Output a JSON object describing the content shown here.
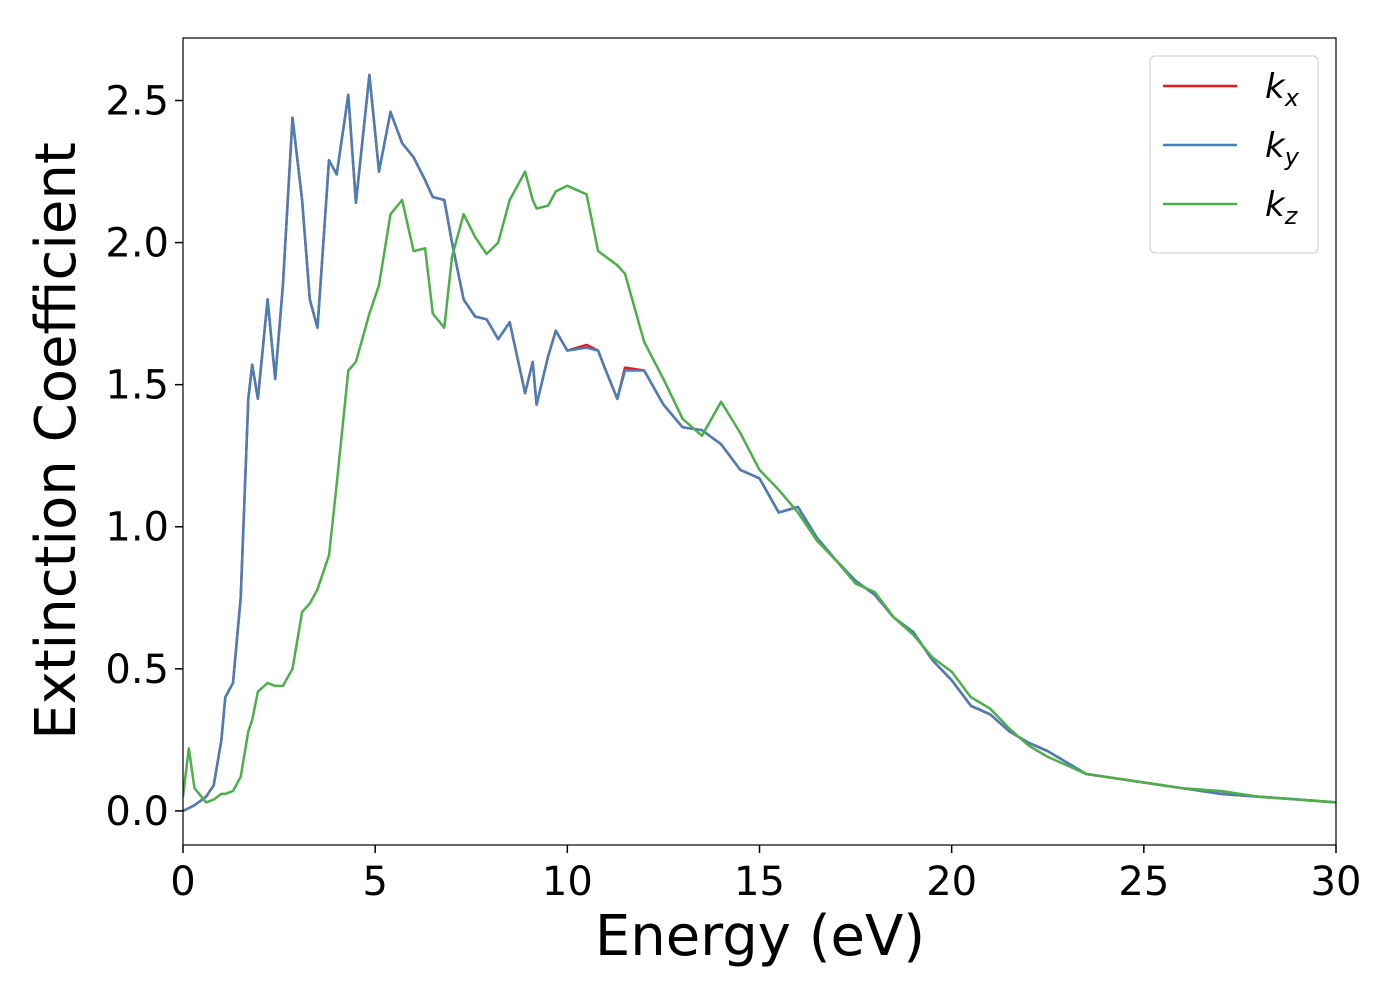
{
  "chart_data": {
    "type": "line",
    "xlabel": "Energy (eV)",
    "ylabel": "Extinction Coefficient",
    "x": [
      0,
      0.15,
      0.3,
      0.6,
      0.8,
      1.0,
      1.1,
      1.3,
      1.5,
      1.7,
      1.8,
      1.95,
      2.2,
      2.4,
      2.6,
      2.85,
      3.1,
      3.3,
      3.5,
      3.8,
      4.0,
      4.3,
      4.5,
      4.85,
      5.1,
      5.4,
      5.7,
      6.0,
      6.3,
      6.5,
      6.8,
      7.0,
      7.3,
      7.6,
      7.9,
      8.2,
      8.5,
      8.9,
      9.1,
      9.2,
      9.5,
      9.7,
      10.0,
      10.5,
      10.8,
      11.0,
      11.3,
      11.5,
      12.0,
      12.5,
      13.0,
      13.5,
      14.0,
      14.5,
      15,
      15.5,
      16,
      16.5,
      17,
      17.5,
      18,
      18.5,
      19,
      19.5,
      20,
      20.5,
      21,
      21.5,
      22,
      22.5,
      23,
      23.5,
      24,
      25,
      26,
      27,
      28,
      29,
      30
    ],
    "series": [
      {
        "name": "kx",
        "color": "#e41a1c",
        "values": [
          0,
          0.01,
          0.02,
          0.05,
          0.09,
          0.25,
          0.4,
          0.45,
          0.75,
          1.45,
          1.57,
          1.45,
          1.8,
          1.52,
          1.85,
          2.44,
          2.15,
          1.8,
          1.7,
          2.29,
          2.24,
          2.52,
          2.14,
          2.59,
          2.25,
          2.46,
          2.35,
          2.3,
          2.22,
          2.16,
          2.15,
          2.0,
          1.8,
          1.74,
          1.73,
          1.66,
          1.72,
          1.47,
          1.58,
          1.43,
          1.6,
          1.69,
          1.62,
          1.64,
          1.62,
          1.55,
          1.45,
          1.56,
          1.55,
          1.43,
          1.35,
          1.34,
          1.29,
          1.2,
          1.17,
          1.05,
          1.07,
          0.96,
          0.88,
          0.81,
          0.76,
          0.68,
          0.63,
          0.53,
          0.46,
          0.37,
          0.34,
          0.28,
          0.24,
          0.21,
          0.17,
          0.13,
          0.12,
          0.1,
          0.08,
          0.06,
          0.05,
          0.04,
          0.03
        ]
      },
      {
        "name": "ky",
        "color": "#4a7fb5",
        "values": [
          0,
          0.01,
          0.02,
          0.05,
          0.09,
          0.25,
          0.4,
          0.45,
          0.75,
          1.45,
          1.57,
          1.45,
          1.8,
          1.52,
          1.85,
          2.44,
          2.15,
          1.8,
          1.7,
          2.29,
          2.24,
          2.52,
          2.14,
          2.59,
          2.25,
          2.46,
          2.35,
          2.3,
          2.22,
          2.16,
          2.15,
          2.0,
          1.8,
          1.74,
          1.73,
          1.66,
          1.72,
          1.47,
          1.58,
          1.43,
          1.6,
          1.69,
          1.62,
          1.63,
          1.62,
          1.55,
          1.45,
          1.55,
          1.55,
          1.43,
          1.35,
          1.34,
          1.29,
          1.2,
          1.17,
          1.05,
          1.07,
          0.96,
          0.88,
          0.81,
          0.76,
          0.68,
          0.63,
          0.53,
          0.46,
          0.37,
          0.34,
          0.28,
          0.24,
          0.21,
          0.17,
          0.13,
          0.12,
          0.1,
          0.08,
          0.06,
          0.05,
          0.04,
          0.03
        ]
      },
      {
        "name": "kz",
        "color": "#4daf4a",
        "values": [
          0.05,
          0.22,
          0.08,
          0.03,
          0.04,
          0.06,
          0.06,
          0.07,
          0.12,
          0.28,
          0.32,
          0.42,
          0.45,
          0.44,
          0.44,
          0.5,
          0.7,
          0.73,
          0.78,
          0.9,
          1.15,
          1.55,
          1.58,
          1.75,
          1.85,
          2.1,
          2.15,
          1.97,
          1.98,
          1.75,
          1.7,
          1.95,
          2.1,
          2.02,
          1.96,
          2.0,
          2.15,
          2.25,
          2.15,
          2.12,
          2.13,
          2.18,
          2.2,
          2.17,
          1.97,
          1.95,
          1.92,
          1.89,
          1.65,
          1.52,
          1.38,
          1.32,
          1.44,
          1.33,
          1.2,
          1.13,
          1.05,
          0.95,
          0.88,
          0.8,
          0.77,
          0.68,
          0.62,
          0.54,
          0.49,
          0.4,
          0.36,
          0.29,
          0.23,
          0.19,
          0.16,
          0.13,
          0.12,
          0.1,
          0.08,
          0.07,
          0.05,
          0.04,
          0.03
        ]
      }
    ],
    "xlim": [
      0,
      30
    ],
    "xticks": [
      0,
      5,
      10,
      15,
      20,
      25,
      30
    ],
    "ylim": [
      -0.12,
      2.72
    ],
    "yticks": [
      {
        "value": 0,
        "label": "0.0"
      },
      0.5,
      {
        "value": 1,
        "label": "1.0"
      },
      1.5,
      {
        "value": 2,
        "label": "2.0"
      },
      2.5
    ],
    "grid": false,
    "legend": "upper right"
  }
}
